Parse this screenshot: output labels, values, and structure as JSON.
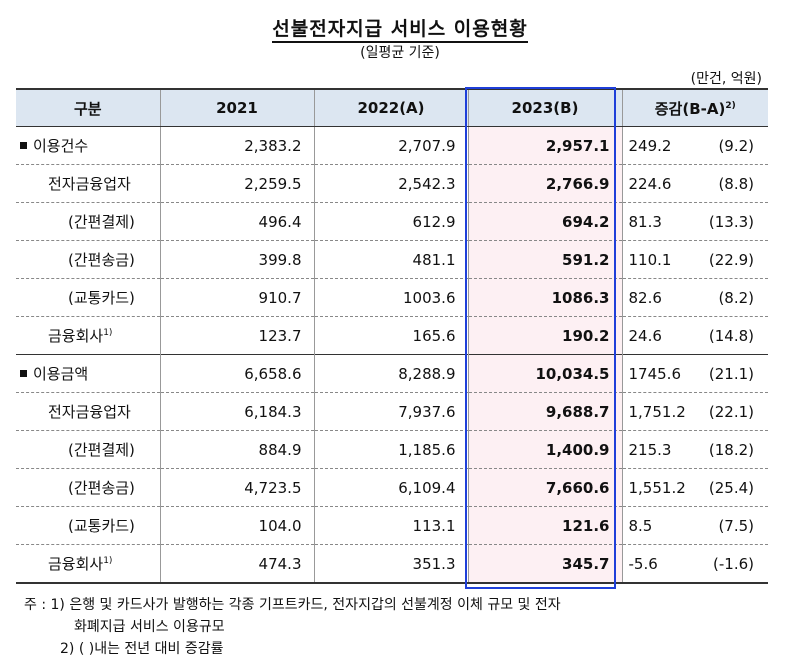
{
  "title": "선불전자지급 서비스 이용현황",
  "subtitle": "(일평균 기준)",
  "unit": "(만건, 억원)",
  "headers": {
    "category": "구분",
    "y2021": "2021",
    "y2022": "2022(A)",
    "y2023": "2023(B)",
    "change": "증감(B-A)",
    "change_note": "2)"
  },
  "rows": [
    {
      "label": "이용건수",
      "note": "",
      "v2021": "2,383.2",
      "v2022": "2,707.9",
      "v2023": "2,957.1",
      "diff": "249.2",
      "pct": "(9.2)"
    },
    {
      "label": "전자금융업자",
      "note": "",
      "v2021": "2,259.5",
      "v2022": "2,542.3",
      "v2023": "2,766.9",
      "diff": "224.6",
      "pct": "(8.8)"
    },
    {
      "label": "(간편결제)",
      "note": "",
      "v2021": "496.4",
      "v2022": "612.9",
      "v2023": "694.2",
      "diff": "81.3",
      "pct": "(13.3)"
    },
    {
      "label": "(간편송금)",
      "note": "",
      "v2021": "399.8",
      "v2022": "481.1",
      "v2023": "591.2",
      "diff": "110.1",
      "pct": "(22.9)"
    },
    {
      "label": "(교통카드)",
      "note": "",
      "v2021": "910.7",
      "v2022": "1003.6",
      "v2023": "1086.3",
      "diff": "82.6",
      "pct": "(8.2)"
    },
    {
      "label": "금융회사",
      "note": "1)",
      "v2021": "123.7",
      "v2022": "165.6",
      "v2023": "190.2",
      "diff": "24.6",
      "pct": "(14.8)"
    },
    {
      "label": "이용금액",
      "note": "",
      "v2021": "6,658.6",
      "v2022": "8,288.9",
      "v2023": "10,034.5",
      "diff": "1745.6",
      "pct": "(21.1)"
    },
    {
      "label": "전자금융업자",
      "note": "",
      "v2021": "6,184.3",
      "v2022": "7,937.6",
      "v2023": "9,688.7",
      "diff": "1,751.2",
      "pct": "(22.1)"
    },
    {
      "label": "(간편결제)",
      "note": "",
      "v2021": "884.9",
      "v2022": "1,185.6",
      "v2023": "1,400.9",
      "diff": "215.3",
      "pct": "(18.2)"
    },
    {
      "label": "(간편송금)",
      "note": "",
      "v2021": "4,723.5",
      "v2022": "6,109.4",
      "v2023": "7,660.6",
      "diff": "1,551.2",
      "pct": "(25.4)"
    },
    {
      "label": "(교통카드)",
      "note": "",
      "v2021": "104.0",
      "v2022": "113.1",
      "v2023": "121.6",
      "diff": "8.5",
      "pct": "(7.5)"
    },
    {
      "label": "금융회사",
      "note": "1)",
      "v2021": "474.3",
      "v2022": "351.3",
      "v2023": "345.7",
      "diff": "-5.6",
      "pct": "(-1.6)"
    }
  ],
  "notes": {
    "n1": "주 : 1) 은행 및 카드사가 발행하는 각종 기프트카드, 전자지갑의 선불계정 이체 규모 및 전자",
    "n1b": "화폐지급 서비스 이용규모",
    "n2": "2) (   )내는 전년 대비 증감률"
  },
  "colors": {
    "header_bg": "#dce6f1",
    "highlight_bg": "#fdf0f3",
    "highlight_border": "#1f3fd9"
  }
}
